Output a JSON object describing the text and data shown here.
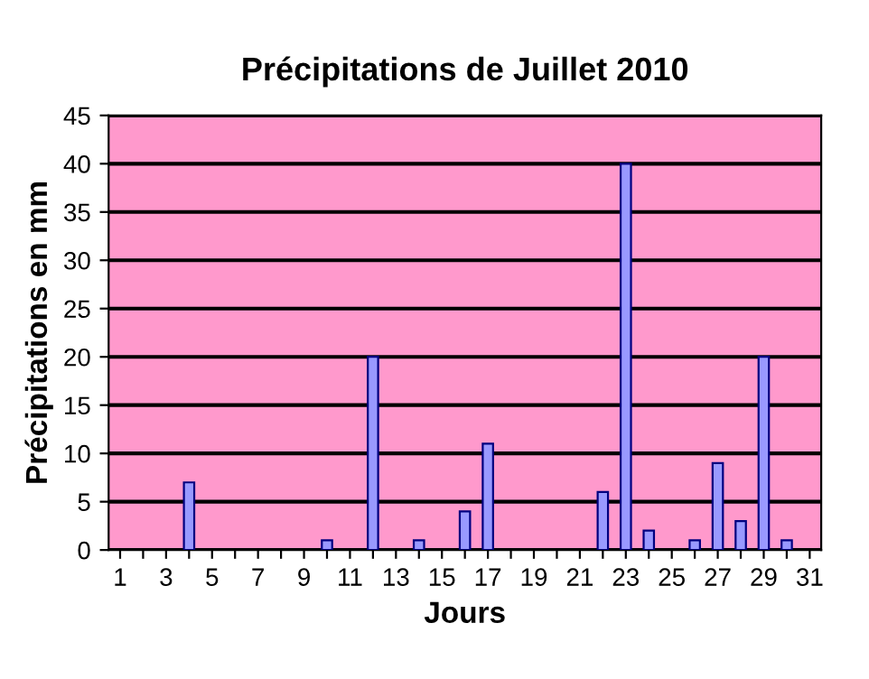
{
  "chart_data": {
    "type": "bar",
    "title": "Précipitations de Juillet 2010",
    "xlabel": "Jours",
    "ylabel": "Précipitations en mm",
    "categories": [
      "1",
      null,
      "3",
      null,
      "5",
      null,
      "7",
      null,
      "9",
      null,
      "11",
      null,
      "13",
      null,
      "15",
      null,
      "17",
      null,
      "19",
      null,
      "21",
      null,
      "23",
      null,
      "25",
      null,
      "27",
      null,
      "29",
      null,
      "31"
    ],
    "values": [
      0,
      0,
      0,
      7,
      0,
      0,
      0,
      0,
      0,
      1,
      0,
      20,
      0,
      1,
      0,
      4,
      11,
      0,
      0,
      0,
      0,
      6,
      40,
      2,
      0,
      1,
      9,
      3,
      20,
      1,
      0
    ],
    "color": "#9999ff",
    "ylim": [
      0,
      45
    ],
    "yticks": [
      0,
      5,
      10,
      15,
      20,
      25,
      30,
      35,
      40,
      45
    ],
    "grid": "y",
    "legend": false
  }
}
